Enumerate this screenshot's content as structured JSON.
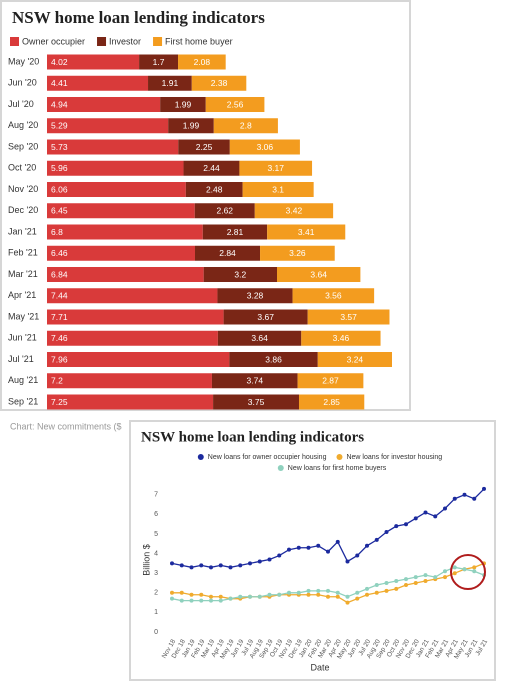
{
  "chart_data": [
    {
      "type": "bar",
      "orientation": "horizontal",
      "stacked": true,
      "title": "NSW home loan lending indicators",
      "note": "Chart: New commitments ($",
      "categories": [
        "May '20",
        "Jun '20",
        "Jul '20",
        "Aug '20",
        "Sep '20",
        "Oct '20",
        "Nov '20",
        "Dec '20",
        "Jan '21",
        "Feb '21",
        "Mar '21",
        "Apr '21",
        "May '21",
        "Jun '21",
        "Jul '21",
        "Aug '21",
        "Sep '21"
      ],
      "series": [
        {
          "name": "Owner occupier",
          "color": "#d93a3a",
          "values": [
            4.02,
            4.41,
            4.94,
            5.29,
            5.73,
            5.96,
            6.06,
            6.45,
            6.8,
            6.46,
            6.84,
            7.44,
            7.71,
            7.46,
            7.96,
            7.2,
            7.25
          ]
        },
        {
          "name": "Investor",
          "color": "#7a2616",
          "values": [
            1.7,
            1.91,
            1.99,
            1.99,
            2.25,
            2.44,
            2.48,
            2.62,
            2.81,
            2.84,
            3.2,
            3.28,
            3.67,
            3.64,
            3.86,
            3.74,
            3.75
          ]
        },
        {
          "name": "First home buyer",
          "color": "#f39c1f",
          "values": [
            2.08,
            2.38,
            2.56,
            2.8,
            3.06,
            3.17,
            3.1,
            3.42,
            3.41,
            3.26,
            3.64,
            3.56,
            3.57,
            3.46,
            3.24,
            2.87,
            2.85
          ]
        }
      ],
      "legend": "top-left"
    },
    {
      "type": "line",
      "title": "NSW home loan lending indicators",
      "x_label": "Date",
      "y_label": "Billion $",
      "categories": [
        "Nov 18",
        "Dec 18",
        "Jan 19",
        "Feb 19",
        "Mar 19",
        "Apr 19",
        "May 19",
        "Jun 19",
        "Jul 19",
        "Aug 19",
        "Sep 19",
        "Oct 19",
        "Nov 19",
        "Dec 19",
        "Jan 20",
        "Feb 20",
        "Mar 20",
        "Apr 20",
        "May 20",
        "Jun 20",
        "Jul 20",
        "Aug 20",
        "Sep 20",
        "Oct 20",
        "Nov 20",
        "Dec 20",
        "Jan 21",
        "Feb 21",
        "Mar 21",
        "Apr 21",
        "May 21",
        "Jun 21",
        "Jul 21"
      ],
      "series": [
        {
          "name": "New loans for owner occupier housing",
          "color": "#1c2a9e",
          "values": [
            3.5,
            3.4,
            3.3,
            3.4,
            3.3,
            3.4,
            3.3,
            3.4,
            3.5,
            3.6,
            3.7,
            3.9,
            4.2,
            4.3,
            4.3,
            4.4,
            4.1,
            4.6,
            3.6,
            3.9,
            4.4,
            4.7,
            5.1,
            5.4,
            5.5,
            5.8,
            6.1,
            5.9,
            6.3,
            6.8,
            7.0,
            6.8,
            7.3
          ]
        },
        {
          "name": "New loans for investor housing",
          "color": "#f0ab2e",
          "values": [
            2.0,
            2.0,
            1.9,
            1.9,
            1.8,
            1.8,
            1.7,
            1.7,
            1.8,
            1.8,
            1.8,
            1.9,
            1.9,
            1.9,
            1.9,
            1.9,
            1.8,
            1.8,
            1.5,
            1.7,
            1.9,
            2.0,
            2.1,
            2.2,
            2.4,
            2.5,
            2.6,
            2.7,
            2.8,
            3.0,
            3.2,
            3.3,
            3.5
          ]
        },
        {
          "name": "New loans for first home buyers",
          "color": "#8fd1be",
          "values": [
            1.7,
            1.6,
            1.6,
            1.6,
            1.6,
            1.6,
            1.7,
            1.8,
            1.8,
            1.8,
            1.9,
            1.9,
            2.0,
            2.0,
            2.1,
            2.1,
            2.1,
            2.0,
            1.8,
            2.0,
            2.2,
            2.4,
            2.5,
            2.6,
            2.7,
            2.8,
            2.9,
            2.8,
            3.1,
            3.3,
            3.2,
            3.1,
            2.9
          ]
        }
      ],
      "ylim": [
        0,
        7.5
      ],
      "yticks": [
        0,
        1,
        2,
        3,
        4,
        5,
        6,
        7
      ],
      "grid": false,
      "legend": "top"
    }
  ]
}
